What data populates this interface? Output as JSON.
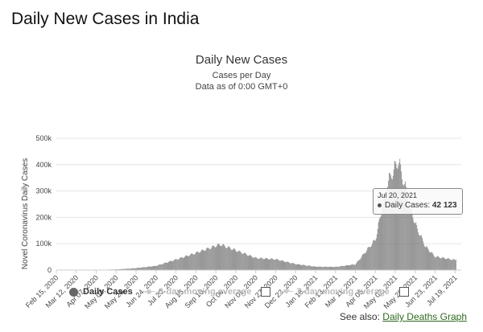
{
  "page": {
    "title": "Daily New Cases in India"
  },
  "chart": {
    "title": "Daily New Cases",
    "subtitle1": "Cases per Day",
    "subtitle2": "Data as of 0:00 GMT+0",
    "bar_color": "#777777",
    "grid_color": "#e6e6e6"
  },
  "legend": {
    "daily": "Daily Cases",
    "ma3": "3-day moving average",
    "ma7": "7-day moving average"
  },
  "tooltip": {
    "date": "Jul 20, 2021",
    "label": "Daily Cases:",
    "value": "42 123"
  },
  "see_also": {
    "prefix": "See also:",
    "link": "Daily Deaths Graph"
  },
  "chart_data": {
    "type": "bar",
    "ylabel": "Novel Coronavirus Daily Cases",
    "xlabel": "",
    "ylim": [
      0,
      500000
    ],
    "y_ticks": [
      "0",
      "100k",
      "200k",
      "300k",
      "400k",
      "500k"
    ],
    "x_ticks": [
      "Feb 15, 2020",
      "Mar 12, 2020",
      "Apr 07, 2020",
      "May 03, 2020",
      "May 29, 2020",
      "Jun 24, 2020",
      "Jul 20, 2020",
      "Aug 15, 2020",
      "Sep 10, 2020",
      "Oct 06, 2020",
      "Nov 01, 2020",
      "Nov 27, 2020",
      "Dec 23, 2020",
      "Jan 18, 2021",
      "Feb 13, 2021",
      "Mar 11, 2021",
      "Apr 06, 2021",
      "May 02, 2021",
      "May 28, 2021",
      "Jun 23, 2021",
      "Jul 19, 2021"
    ],
    "keypoints": [
      [
        "Feb 15, 2020",
        0
      ],
      [
        "Mar 12, 2020",
        20
      ],
      [
        "Apr 07, 2020",
        600
      ],
      [
        "May 03, 2020",
        2500
      ],
      [
        "May 29, 2020",
        7500
      ],
      [
        "Jun 24, 2020",
        16000
      ],
      [
        "Jul 20, 2020",
        40000
      ],
      [
        "Aug 15, 2020",
        65000
      ],
      [
        "Sep 10, 2020",
        92000
      ],
      [
        "Sep 16, 2020",
        97000
      ],
      [
        "Oct 06, 2020",
        75000
      ],
      [
        "Nov 01, 2020",
        46000
      ],
      [
        "Nov 27, 2020",
        41000
      ],
      [
        "Dec 23, 2020",
        23000
      ],
      [
        "Jan 18, 2021",
        13000
      ],
      [
        "Feb 13, 2021",
        12000
      ],
      [
        "Mar 11, 2021",
        22000
      ],
      [
        "Apr 06, 2021",
        115000
      ],
      [
        "Apr 22, 2021",
        330000
      ],
      [
        "May 06, 2021",
        414000
      ],
      [
        "May 16, 2021",
        300000
      ],
      [
        "May 28, 2021",
        175000
      ],
      [
        "Jun 10, 2021",
        90000
      ],
      [
        "Jun 23, 2021",
        51000
      ],
      [
        "Jul 19, 2021",
        38000
      ],
      [
        "Jul 20, 2021",
        42123
      ]
    ]
  }
}
